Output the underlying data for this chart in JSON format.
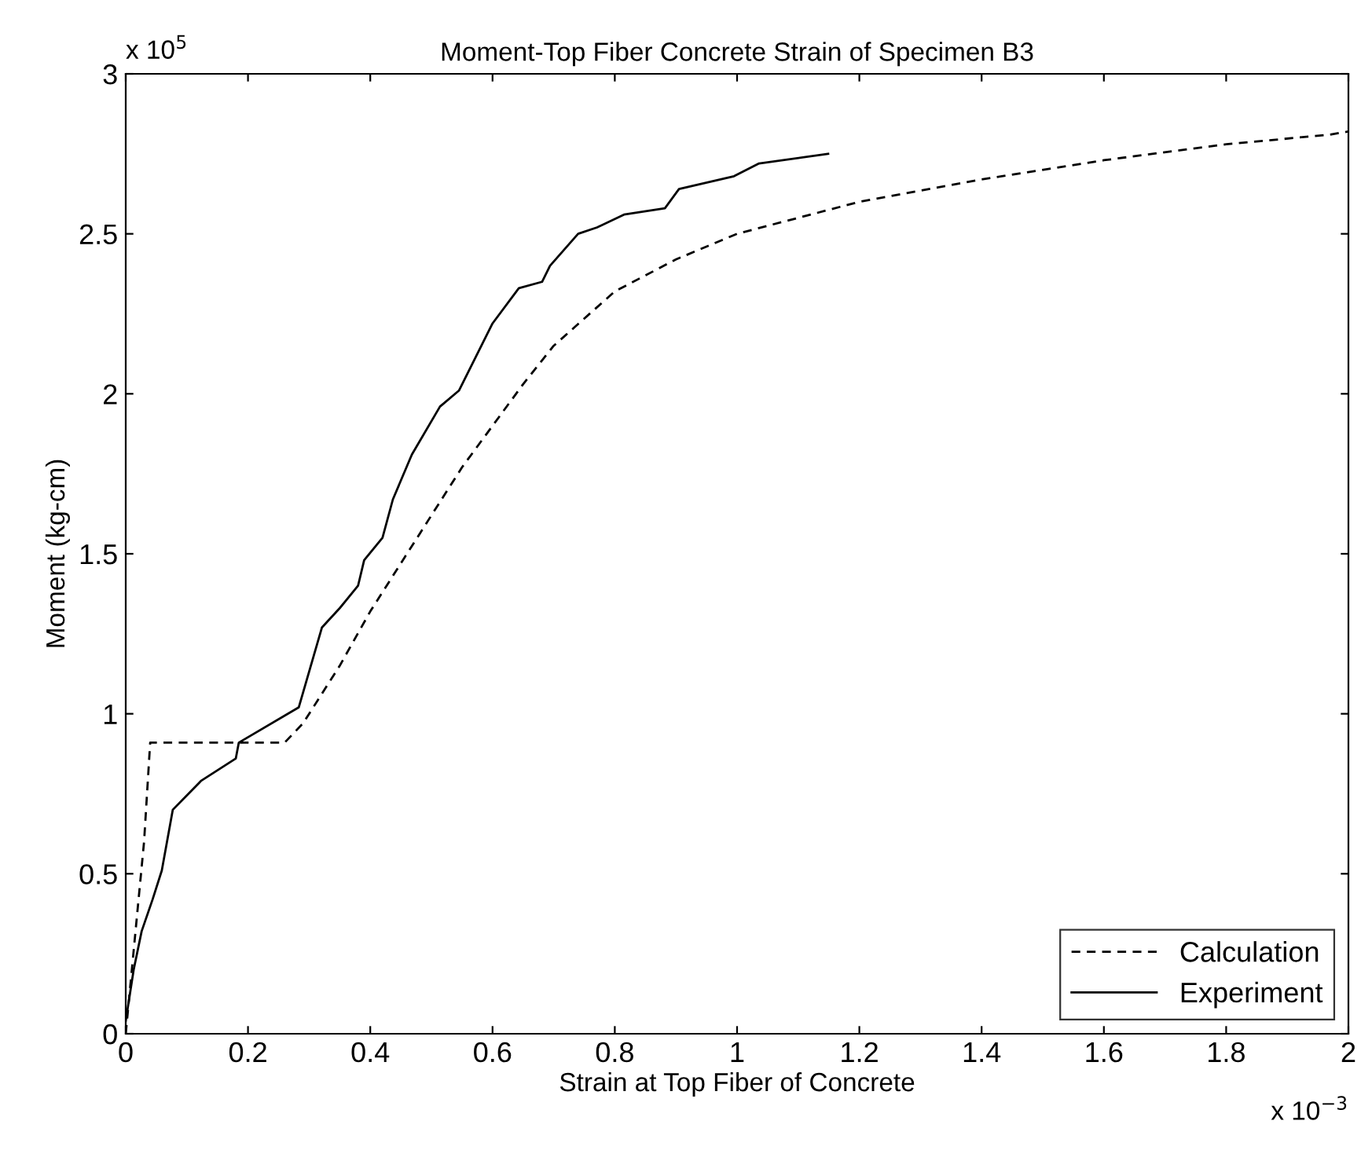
{
  "chart_data": {
    "type": "line",
    "title": "Moment-Top Fiber Concrete Strain of Specimen B3",
    "xlabel": "Strain at Top Fiber of Concrete",
    "ylabel": "Moment (kg-cm)",
    "annotations": [
      "x 10$^{5}$",
      "x 10$^{−3}$"
    ],
    "xlim": [
      0,
      2
    ],
    "ylim": [
      0,
      3
    ],
    "xticks": [
      0,
      0.2,
      0.4,
      0.6,
      0.8,
      1,
      1.2,
      1.4,
      1.6,
      1.8,
      2
    ],
    "yticks": [
      0,
      0.5,
      1,
      1.5,
      2,
      2.5,
      3
    ],
    "grid": false,
    "legend": "bottom right",
    "marker": "none",
    "series": [
      {
        "name": "Calculation",
        "color": "#000000",
        "line_style": "dashed",
        "x": [
          0,
          0.01,
          0.03,
          0.04,
          0.26,
          0.29,
          0.35,
          0.4,
          0.45,
          0.5,
          0.55,
          0.6,
          0.65,
          0.7,
          0.8,
          0.9,
          1.0,
          1.2,
          1.4,
          1.6,
          1.8,
          1.97,
          2.0
        ],
        "values": [
          0,
          0.2,
          0.6,
          0.91,
          0.91,
          0.97,
          1.15,
          1.32,
          1.47,
          1.62,
          1.77,
          1.9,
          2.03,
          2.15,
          2.32,
          2.42,
          2.5,
          2.6,
          2.67,
          2.73,
          2.78,
          2.81,
          2.82
        ]
      },
      {
        "name": "Experiment",
        "color": "#000000",
        "line_style": "solid",
        "x": [
          0,
          0.013,
          0.026,
          0.044,
          0.059,
          0.077,
          0.123,
          0.18,
          0.185,
          0.283,
          0.321,
          0.35,
          0.38,
          0.39,
          0.42,
          0.437,
          0.468,
          0.514,
          0.545,
          0.6,
          0.643,
          0.681,
          0.694,
          0.74,
          0.771,
          0.815,
          0.882,
          0.905,
          0.995,
          1.036,
          1.149
        ],
        "values": [
          0.04,
          0.2,
          0.32,
          0.42,
          0.51,
          0.7,
          0.79,
          0.86,
          0.91,
          1.02,
          1.27,
          1.33,
          1.4,
          1.48,
          1.55,
          1.67,
          1.81,
          1.96,
          2.01,
          2.22,
          2.33,
          2.35,
          2.4,
          2.5,
          2.52,
          2.56,
          2.58,
          2.64,
          2.68,
          2.72,
          2.75
        ]
      }
    ]
  }
}
